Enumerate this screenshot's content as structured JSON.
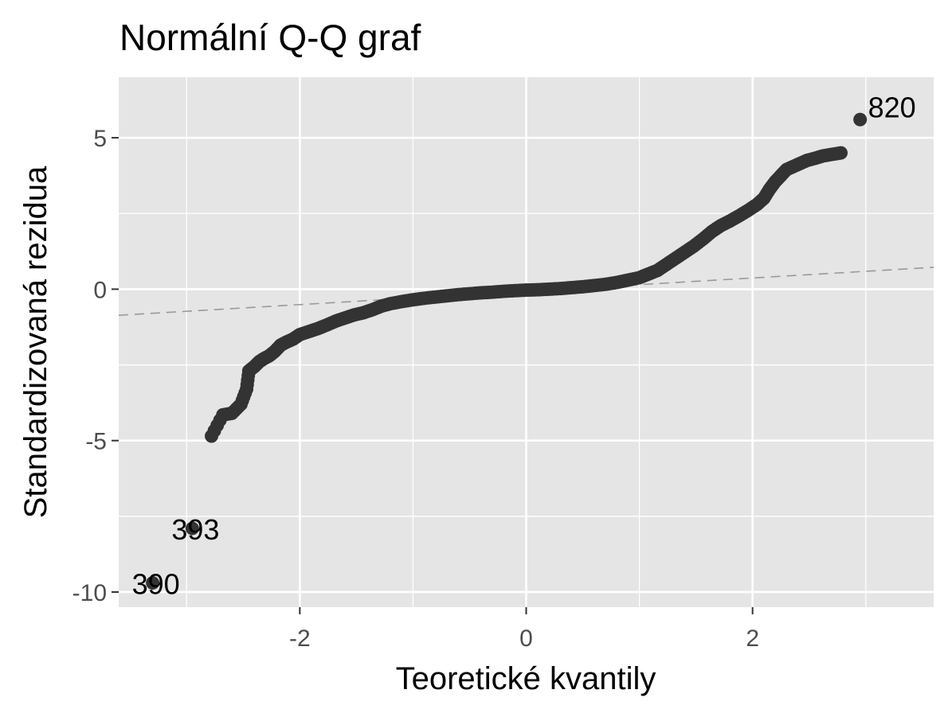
{
  "chart_data": {
    "type": "scatter",
    "title": "Normální Q-Q graf",
    "xlabel": "Teoretické kvantily",
    "ylabel": "Standardizovaná rezidua",
    "xlim": [
      -3.6,
      3.6
    ],
    "ylim": [
      -10.5,
      7.0
    ],
    "x_ticks": [
      -2,
      0,
      2
    ],
    "x_tick_labels": [
      "-2",
      "0",
      "2"
    ],
    "y_ticks": [
      -10,
      -5,
      0,
      5
    ],
    "y_tick_labels": [
      "-10",
      "-5",
      "0",
      "5"
    ],
    "grid": true,
    "panel_background": "#e5e5e5",
    "grid_color": "#ffffff",
    "point_color": "#333333",
    "reference_line": {
      "intercept": -0.07,
      "slope": 0.22,
      "style": "dashed",
      "color": "#999999"
    },
    "series": [
      {
        "x": [
          -3.3,
          -2.95,
          -2.78,
          -2.68,
          -2.6,
          -2.52,
          -2.47,
          -2.45,
          -2.4,
          -2.36,
          -2.32,
          -2.27,
          -2.22,
          -2.17,
          -2.12,
          -2.06,
          -2.0,
          -1.92,
          -1.84,
          -1.76,
          -1.68,
          -1.6,
          -1.52,
          -1.44,
          -1.36,
          -1.28,
          -1.2,
          -1.1,
          -1.0,
          -0.9,
          -0.8,
          -0.7,
          -0.6,
          -0.5,
          -0.4,
          -0.3,
          -0.2,
          -0.1,
          0.0,
          0.1,
          0.2,
          0.3,
          0.4,
          0.5,
          0.6,
          0.7,
          0.8,
          0.9,
          1.0,
          1.08,
          1.16,
          1.24,
          1.32,
          1.4,
          1.48,
          1.56,
          1.64,
          1.72,
          1.8,
          1.88,
          1.96,
          2.04,
          2.1,
          2.15,
          2.2,
          2.25,
          2.3,
          2.36,
          2.42,
          2.48,
          2.55,
          2.62,
          2.7,
          2.78,
          2.95
        ],
        "y": [
          -9.7,
          -7.9,
          -4.85,
          -4.15,
          -4.1,
          -3.8,
          -3.3,
          -2.7,
          -2.55,
          -2.4,
          -2.3,
          -2.2,
          -2.05,
          -1.85,
          -1.75,
          -1.65,
          -1.5,
          -1.4,
          -1.3,
          -1.18,
          -1.05,
          -0.95,
          -0.85,
          -0.78,
          -0.68,
          -0.56,
          -0.48,
          -0.41,
          -0.35,
          -0.3,
          -0.26,
          -0.22,
          -0.18,
          -0.15,
          -0.12,
          -0.1,
          -0.07,
          -0.05,
          -0.03,
          -0.02,
          0.0,
          0.02,
          0.05,
          0.08,
          0.12,
          0.16,
          0.22,
          0.3,
          0.38,
          0.5,
          0.62,
          0.82,
          1.02,
          1.22,
          1.42,
          1.65,
          1.9,
          2.1,
          2.25,
          2.42,
          2.6,
          2.8,
          3.0,
          3.3,
          3.55,
          3.75,
          3.95,
          4.05,
          4.15,
          4.25,
          4.32,
          4.4,
          4.45,
          4.5,
          5.6
        ]
      }
    ],
    "annotations": [
      {
        "text": "820",
        "x": 2.95,
        "y": 5.6
      },
      {
        "text": "393",
        "x": -2.95,
        "y": -7.9
      },
      {
        "text": "390",
        "x": -3.3,
        "y": -9.7
      }
    ]
  }
}
